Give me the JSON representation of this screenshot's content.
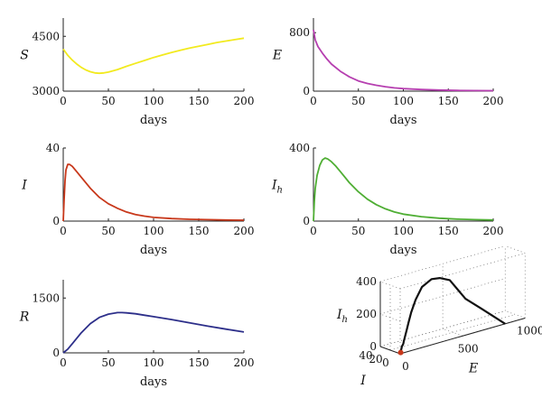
{
  "chart_data": [
    {
      "type": "line",
      "ylabel": "S",
      "xlabel": "days",
      "xlim": [
        0,
        200
      ],
      "ylim": [
        3000,
        5000
      ],
      "xticks": [
        0,
        50,
        100,
        150,
        200
      ],
      "yticks": [
        3000,
        4500
      ],
      "color": "#f2ea1f",
      "series": [
        {
          "x": [
            0,
            5,
            10,
            15,
            20,
            25,
            30,
            35,
            40,
            45,
            50,
            60,
            70,
            80,
            90,
            100,
            110,
            120,
            130,
            140,
            150,
            160,
            170,
            180,
            190,
            200
          ],
          "y": [
            4150,
            3980,
            3850,
            3740,
            3650,
            3580,
            3530,
            3500,
            3490,
            3500,
            3520,
            3590,
            3680,
            3760,
            3840,
            3920,
            3990,
            4060,
            4120,
            4180,
            4230,
            4280,
            4330,
            4370,
            4410,
            4450
          ]
        }
      ]
    },
    {
      "type": "line",
      "ylabel": "E",
      "xlabel": "days",
      "xlim": [
        0,
        200
      ],
      "ylim": [
        0,
        1000
      ],
      "xticks": [
        0,
        50,
        100,
        150,
        200
      ],
      "yticks": [
        0,
        800
      ],
      "color": "#b63fb0",
      "series": [
        {
          "x": [
            0,
            2,
            5,
            10,
            15,
            20,
            30,
            40,
            50,
            60,
            70,
            80,
            90,
            100,
            110,
            120,
            140,
            160,
            180,
            200
          ],
          "y": [
            840,
            700,
            610,
            520,
            440,
            370,
            270,
            195,
            140,
            105,
            80,
            60,
            45,
            35,
            28,
            22,
            15,
            10,
            8,
            6
          ]
        }
      ]
    },
    {
      "type": "line",
      "ylabel": "I",
      "xlabel": "days",
      "xlim": [
        0,
        200
      ],
      "ylim": [
        0,
        40
      ],
      "xticks": [
        0,
        50,
        100,
        150,
        200
      ],
      "yticks": [
        0,
        40
      ],
      "color": "#c8381b",
      "series": [
        {
          "x": [
            0,
            1,
            2,
            3,
            5,
            7,
            10,
            15,
            20,
            30,
            40,
            50,
            60,
            70,
            80,
            90,
            100,
            120,
            140,
            160,
            180,
            200
          ],
          "y": [
            0,
            12,
            22,
            28,
            31,
            31,
            30,
            27,
            24,
            18,
            13,
            9.5,
            7,
            5,
            3.6,
            2.7,
            2,
            1.4,
            1,
            0.8,
            0.6,
            0.5
          ]
        }
      ]
    },
    {
      "type": "line",
      "ylabel": "I",
      "ylabel_sub": "h",
      "xlabel": "days",
      "xlim": [
        0,
        200
      ],
      "ylim": [
        0,
        400
      ],
      "xticks": [
        0,
        50,
        100,
        150,
        200
      ],
      "yticks": [
        0,
        400
      ],
      "color": "#4fae34",
      "series": [
        {
          "x": [
            0,
            1,
            2,
            4,
            7,
            10,
            13,
            16,
            20,
            25,
            30,
            40,
            50,
            60,
            70,
            80,
            90,
            100,
            120,
            140,
            160,
            180,
            200
          ],
          "y": [
            0,
            110,
            180,
            250,
            305,
            335,
            345,
            340,
            325,
            300,
            270,
            210,
            160,
            120,
            90,
            67,
            50,
            38,
            24,
            16,
            11,
            8,
            6
          ]
        }
      ]
    },
    {
      "type": "line",
      "ylabel": "R",
      "xlabel": "days",
      "xlim": [
        0,
        200
      ],
      "ylim": [
        0,
        2000
      ],
      "xticks": [
        0,
        50,
        100,
        150,
        200
      ],
      "yticks": [
        0,
        1500
      ],
      "color": "#2d2f8a",
      "series": [
        {
          "x": [
            0,
            5,
            10,
            20,
            30,
            40,
            50,
            60,
            65,
            70,
            80,
            90,
            100,
            120,
            140,
            160,
            180,
            200
          ],
          "y": [
            0,
            100,
            250,
            550,
            800,
            970,
            1060,
            1100,
            1100,
            1095,
            1070,
            1030,
            990,
            910,
            820,
            730,
            650,
            570
          ]
        }
      ]
    },
    {
      "type": "line",
      "projection": "3d",
      "xlabel": "E",
      "ylabel": "I",
      "zlabel": "I",
      "zlabel_sub": "h",
      "xlim": [
        0,
        1000
      ],
      "ylim": [
        0,
        40
      ],
      "zlim": [
        0,
        400
      ],
      "xticks": [
        0,
        500,
        1000
      ],
      "yticks": [
        0,
        20,
        40
      ],
      "zticks": [
        0,
        200,
        400
      ],
      "color": "#111111",
      "start_marker_color": "#c8381b",
      "series": [
        {
          "E": [
            840,
            700,
            610,
            520,
            440,
            370,
            270,
            195,
            140,
            105,
            80,
            60,
            45,
            35,
            22,
            15,
            10,
            6
          ],
          "I": [
            0,
            12,
            22,
            31,
            31,
            30,
            24,
            18,
            13,
            9.5,
            7,
            5,
            3.6,
            2.7,
            2,
            1.4,
            1,
            0.5
          ],
          "Ih": [
            0,
            110,
            180,
            305,
            335,
            345,
            325,
            270,
            210,
            160,
            120,
            90,
            67,
            50,
            38,
            24,
            16,
            6
          ]
        }
      ]
    }
  ]
}
